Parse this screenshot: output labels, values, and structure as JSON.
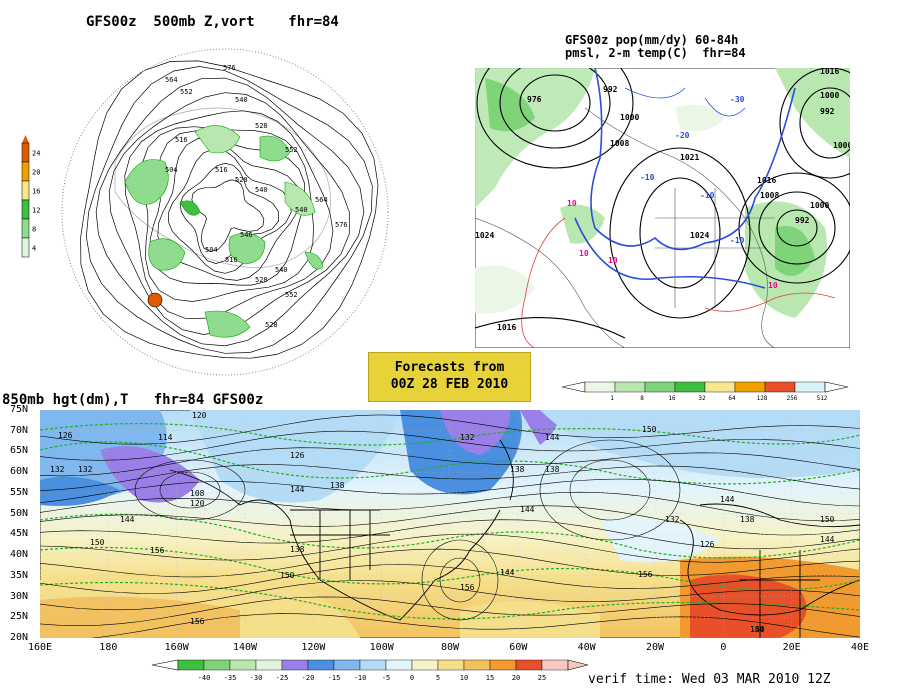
{
  "panel_500mb": {
    "title": "GFS00z  500mb Z,vort    fhr=84",
    "contour_labels": [
      "576",
      "564",
      "552",
      "540",
      "528",
      "516",
      "504",
      "516",
      "528",
      "540",
      "552",
      "564",
      "576",
      "540",
      "528",
      "516",
      "504",
      "546",
      "540",
      "552",
      "528"
    ],
    "colorbar": {
      "ticks": [
        "24",
        "20",
        "16",
        "12",
        "8",
        "4"
      ],
      "colors": [
        "#e05a00",
        "#f0a000",
        "#f7e78a",
        "#3fbf3f",
        "#8fdc8f",
        "#dff5df"
      ]
    }
  },
  "panel_pop": {
    "title_line1": "GFS00z pop(mm/dy) 60-84h",
    "title_line2": "pmsl, 2-m temp(C)  fhr=84",
    "labels": [
      "1016",
      "1000",
      "992",
      "976",
      "992",
      "1000",
      "1008",
      "1021",
      "1024",
      "1008",
      "1000",
      "992",
      "1000",
      "1016",
      "1024",
      "1016",
      "10",
      "10",
      "10",
      "-10",
      "-20",
      "-30",
      "-10",
      "10",
      "-10"
    ],
    "colorbar": {
      "ticks": [
        "1",
        "8",
        "16",
        "32",
        "64",
        "128",
        "256",
        "512"
      ],
      "colors": [
        "#eaf7e6",
        "#b9e7b0",
        "#7fd47a",
        "#3fbf3f",
        "#f7e78a",
        "#f0a000",
        "#e8502a",
        "#d8f2f8"
      ]
    }
  },
  "badge": {
    "line1": "Forecasts from",
    "line2": "00Z 28 FEB 2010"
  },
  "panel_850mb": {
    "title": "850mb hgt(dm),T   fhr=84 GFS00z",
    "lat_labels": [
      "75N",
      "70N",
      "65N",
      "60N",
      "55N",
      "50N",
      "45N",
      "40N",
      "35N",
      "30N",
      "25N",
      "20N"
    ],
    "lon_labels": [
      "160E",
      "180",
      "160W",
      "140W",
      "120W",
      "100W",
      "80W",
      "60W",
      "40W",
      "20W",
      "0",
      "20E",
      "40E"
    ],
    "contour_labels": [
      "120",
      "126",
      "114",
      "132",
      "108",
      "120",
      "144",
      "150",
      "156",
      "138",
      "144",
      "132",
      "126",
      "132",
      "138",
      "144",
      "150",
      "156",
      "144",
      "138",
      "144",
      "150",
      "156",
      "132",
      "126",
      "144",
      "138",
      "144",
      "150",
      "144",
      "150",
      "156",
      "138"
    ],
    "colorbar": {
      "ticks": [
        "-40",
        "-35",
        "-30",
        "-25",
        "-20",
        "-15",
        "-10",
        "-5",
        "0",
        "5",
        "10",
        "15",
        "20",
        "25"
      ],
      "colors": [
        "#3fbf3f",
        "#7fd47a",
        "#b9e7b0",
        "#e0f5dc",
        "#9b7fe8",
        "#4a8fe0",
        "#7fb8ef",
        "#b5dcf7",
        "#e3f4fb",
        "#f7f3c8",
        "#f5df8a",
        "#f3c260",
        "#f09a30",
        "#e8502a",
        "#f8c8c0"
      ]
    }
  },
  "footer": {
    "verif_time": "verif time: Wed 03 MAR 2010 12Z"
  }
}
